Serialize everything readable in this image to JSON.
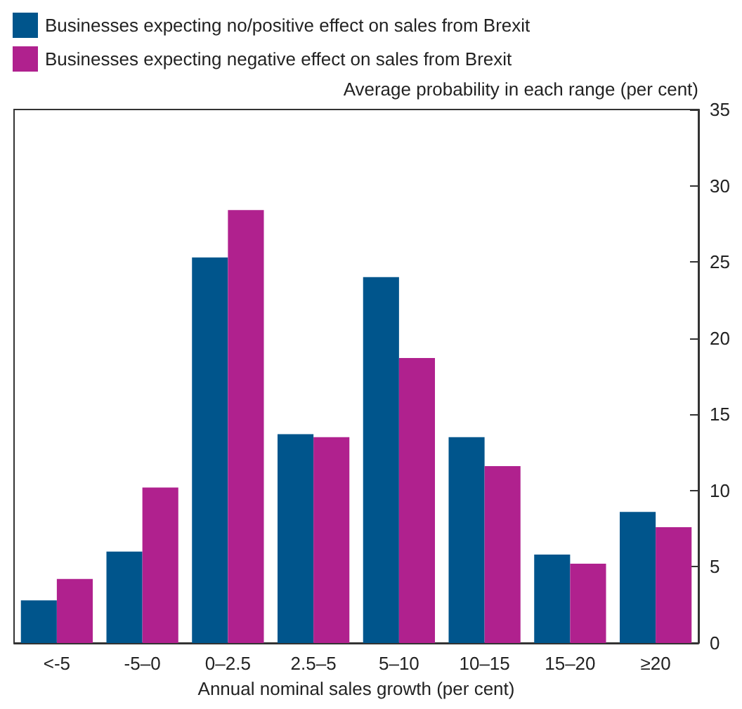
{
  "chart_data": {
    "type": "bar",
    "xlabel": "Annual nominal sales growth (per cent)",
    "ylabel": "Average probability in each range (per cent)",
    "categories": [
      "<-5",
      "-5–0",
      "0–2.5",
      "2.5–5",
      "5–10",
      "10–15",
      "15–20",
      "≥20"
    ],
    "series": [
      {
        "name": "Businesses expecting no/positive effect on sales from Brexit",
        "color": "#00558c",
        "values": [
          2.8,
          6.0,
          25.3,
          13.7,
          24.0,
          13.5,
          5.8,
          8.6
        ]
      },
      {
        "name": "Businesses expecting negative effect on sales from Brexit",
        "color": "#b0218e",
        "values": [
          4.2,
          10.2,
          28.4,
          13.5,
          18.7,
          11.6,
          5.2,
          7.6
        ]
      }
    ],
    "ylim": [
      0,
      35
    ],
    "yticks": [
      0,
      5,
      10,
      15,
      20,
      25,
      30,
      35
    ],
    "grid": false,
    "legend": "top left"
  }
}
